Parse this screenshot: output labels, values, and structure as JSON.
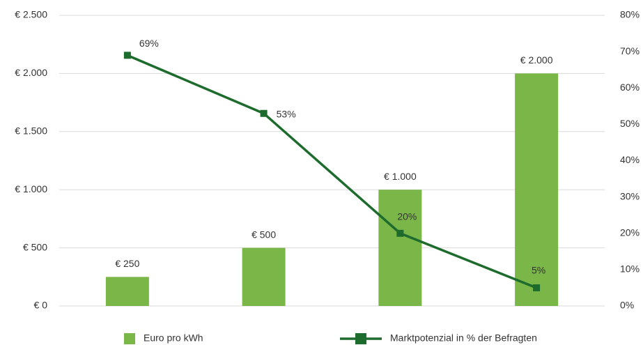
{
  "chart_data": {
    "type": "bar-line",
    "categories": [
      null,
      null,
      null,
      null
    ],
    "series": [
      {
        "name": "Euro pro kWh",
        "type": "bar",
        "color": "#7ab648",
        "values": [
          250,
          500,
          1000,
          2000
        ],
        "value_labels": [
          "€ 250",
          "€ 500",
          "€ 1.000",
          "€ 2.000"
        ]
      },
      {
        "name": "Marktpotenzial in % der Befragten",
        "type": "line",
        "axis": "y2",
        "color": "#1e6b2e",
        "values": [
          69,
          53,
          20,
          5
        ],
        "value_labels": [
          "69%",
          "53%",
          "20%",
          "5%"
        ]
      }
    ],
    "ylim": [
      0,
      2500
    ],
    "yticks": [
      {
        "value": 0,
        "label": "€ 0"
      },
      {
        "value": 500,
        "label": "€ 500"
      },
      {
        "value": 1000,
        "label": "€ 1.000"
      },
      {
        "value": 1500,
        "label": "€ 1.500"
      },
      {
        "value": 2000,
        "label": "€ 2.000"
      },
      {
        "value": 2500,
        "label": "€ 2.500"
      }
    ],
    "y2lim": [
      0,
      80
    ],
    "y2ticks": [
      {
        "value": 0,
        "label": "0%"
      },
      {
        "value": 10,
        "label": "10%"
      },
      {
        "value": 20,
        "label": "20%"
      },
      {
        "value": 30,
        "label": "30%"
      },
      {
        "value": 40,
        "label": "40%"
      },
      {
        "value": 50,
        "label": "50%"
      },
      {
        "value": 60,
        "label": "60%"
      },
      {
        "value": 70,
        "label": "70%"
      },
      {
        "value": 80,
        "label": "80%"
      }
    ],
    "grid": true,
    "legend": "bottom"
  }
}
